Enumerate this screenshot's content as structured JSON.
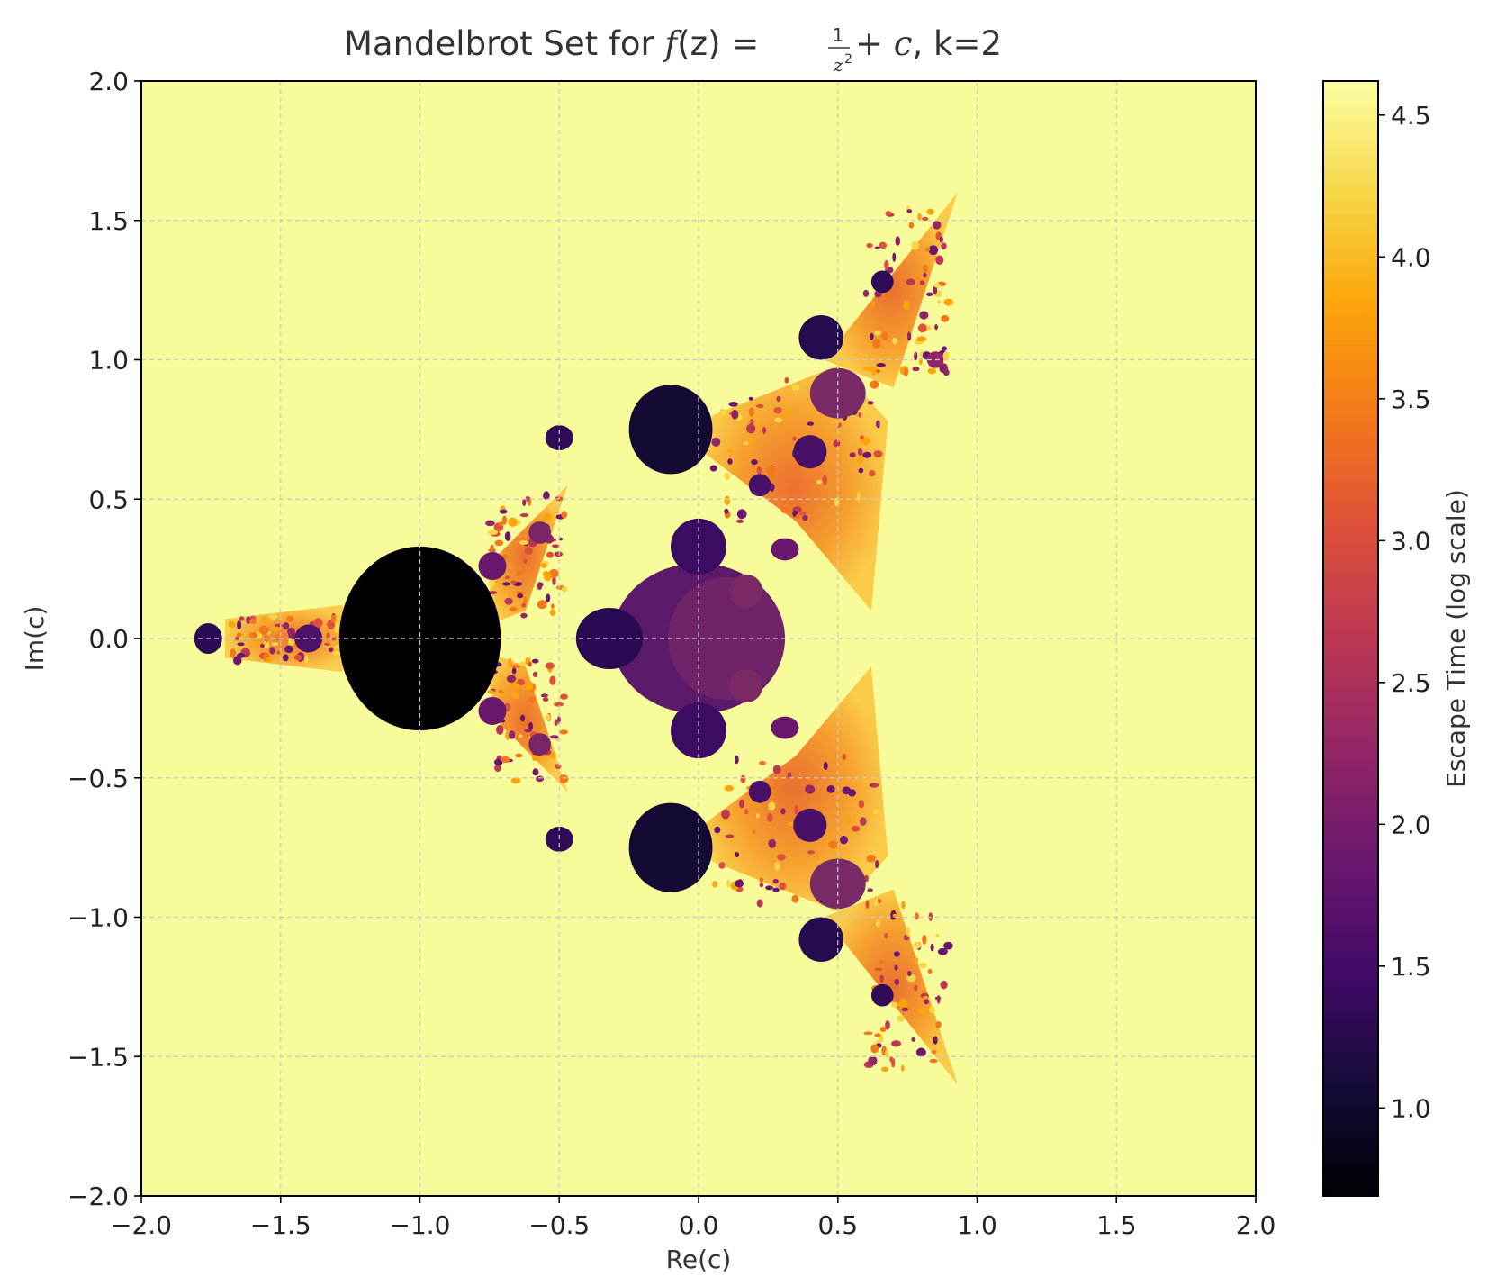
{
  "chart_data": {
    "type": "heatmap",
    "title_prefix": "Mandelbrot Set for ",
    "title_func": "f",
    "title_arg": "(z) = ",
    "title_num": "1",
    "title_den": "z",
    "title_exp": "2",
    "title_tail": " + ",
    "title_c": "c",
    "title_suffix": ", k=2",
    "xlabel": "Re(c)",
    "ylabel": "Im(c)",
    "xlim": [
      -2.0,
      2.0
    ],
    "ylim": [
      -2.0,
      2.0
    ],
    "xticks": [
      -2.0,
      -1.5,
      -1.0,
      -0.5,
      0.0,
      0.5,
      1.0,
      1.5,
      2.0
    ],
    "yticks": [
      -2.0,
      -1.5,
      -1.0,
      -0.5,
      0.0,
      0.5,
      1.0,
      1.5,
      2.0
    ],
    "xtick_labels": [
      "−2.0",
      "−1.5",
      "−1.0",
      "−0.5",
      "0.0",
      "0.5",
      "1.0",
      "1.5",
      "2.0"
    ],
    "ytick_labels": [
      "−2.0",
      "−1.5",
      "−1.0",
      "−0.5",
      "0.0",
      "0.5",
      "1.0",
      "1.5",
      "2.0"
    ],
    "grid": true,
    "colormap": "inferno",
    "colorbar": {
      "label": "Escape Time (log scale)",
      "range": [
        0.69,
        4.62
      ],
      "ticks": [
        1.0,
        1.5,
        2.0,
        2.5,
        3.0,
        3.5,
        4.0,
        4.5
      ],
      "tick_labels": [
        "1.0",
        "1.5",
        "2.0",
        "2.5",
        "3.0",
        "3.5",
        "4.0",
        "4.5"
      ]
    },
    "colors": {
      "background": "#f8fb9a",
      "grid": "#c8c8c8",
      "axis": "#000000"
    }
  }
}
